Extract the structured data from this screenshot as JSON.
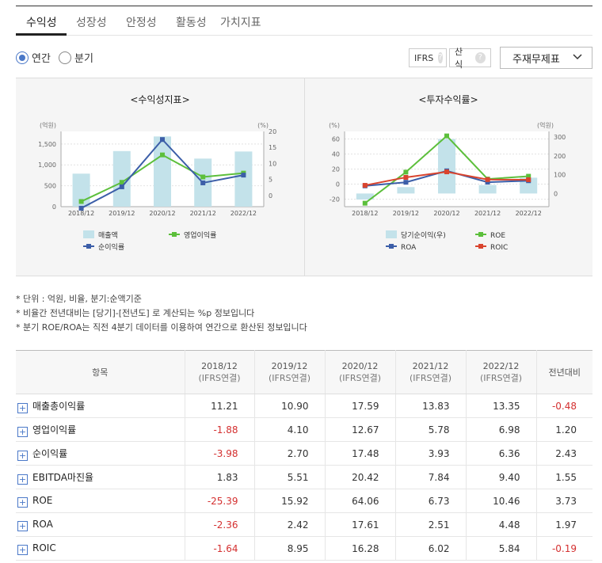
{
  "tabs": [
    {
      "label": "수익성"
    },
    {
      "label": "성장성"
    },
    {
      "label": "안정성"
    },
    {
      "label": "활동성"
    },
    {
      "label": "가치지표"
    }
  ],
  "toolbar": {
    "radio_annual": "연간",
    "radio_quarter": "분기",
    "ifrs_label": "IFRS",
    "calc_label": "산식",
    "qmark": "?",
    "select_value": "주재무제표"
  },
  "colors": {
    "bar": "#c3e2ea",
    "green": "#5cbf3b",
    "blue": "#3c5ea8",
    "red": "#d9442e",
    "negative": "#d43030"
  },
  "chart_data": [
    {
      "type": "bar",
      "title": "<수익성지표>",
      "left_unit": "(억원)",
      "right_unit": "(%)",
      "categories": [
        "2018/12",
        "2019/12",
        "2020/12",
        "2021/12",
        "2022/12"
      ],
      "left_ticks": [
        "0",
        "500",
        "1,000",
        "1,500"
      ],
      "right_ticks": [
        "0",
        "5",
        "10",
        "15",
        "20"
      ],
      "ylim_left": [
        0,
        1800
      ],
      "ylim_right": [
        -3.5,
        20
      ],
      "bar_series": {
        "name": "매출액",
        "values": [
          790,
          1330,
          1680,
          1150,
          1320
        ]
      },
      "line_series": [
        {
          "name": "영업이익률",
          "color": "green",
          "values": [
            -1.88,
            4.1,
            12.67,
            5.78,
            6.98
          ]
        },
        {
          "name": "순이익률",
          "color": "blue",
          "values": [
            -3.98,
            2.7,
            17.48,
            3.93,
            6.36
          ]
        }
      ]
    },
    {
      "type": "bar",
      "title": "<투자수익률>",
      "left_unit": "(%)",
      "right_unit": "(억원)",
      "categories": [
        "2018/12",
        "2019/12",
        "2020/12",
        "2021/12",
        "2022/12"
      ],
      "left_ticks": [
        "-20",
        "0",
        "20",
        "40",
        "60"
      ],
      "right_ticks": [
        "0",
        "100",
        "200",
        "300"
      ],
      "ylim_left": [
        -30,
        70
      ],
      "ylim_right": [
        -70,
        330
      ],
      "bar_series": {
        "name": "당기순이익(우)",
        "values": [
          -32,
          34,
          290,
          45,
          84
        ]
      },
      "line_series": [
        {
          "name": "ROE",
          "color": "green",
          "values": [
            -25.39,
            15.92,
            64.06,
            6.73,
            10.46
          ]
        },
        {
          "name": "ROA",
          "color": "blue",
          "values": [
            -2.36,
            2.42,
            17.61,
            2.51,
            4.48
          ]
        },
        {
          "name": "ROIC",
          "color": "red",
          "values": [
            -1.64,
            8.95,
            16.28,
            6.02,
            5.84
          ]
        }
      ]
    }
  ],
  "notes": [
    "* 단위 : 억원, 비율, 분기:순액기준",
    "* 비율간 전년대비는 [당기]-[전년도] 로 계산되는 %p 정보입니다",
    "* 분기 ROE/ROA는 직전 4분기 데이터를 이용하여 연간으로 환산된 정보입니다"
  ],
  "table": {
    "header_item": "항목",
    "columns": [
      {
        "year": "2018/12",
        "sub": "(IFRS연결)"
      },
      {
        "year": "2019/12",
        "sub": "(IFRS연결)"
      },
      {
        "year": "2020/12",
        "sub": "(IFRS연결)"
      },
      {
        "year": "2021/12",
        "sub": "(IFRS연결)"
      },
      {
        "year": "2022/12",
        "sub": "(IFRS연결)"
      }
    ],
    "header_yoy": "전년대비",
    "rows": [
      {
        "name": "매출총이익률",
        "values": [
          "11.21",
          "10.90",
          "17.59",
          "13.83",
          "13.35"
        ],
        "yoy": "-0.48"
      },
      {
        "name": "영업이익률",
        "values": [
          "-1.88",
          "4.10",
          "12.67",
          "5.78",
          "6.98"
        ],
        "yoy": "1.20"
      },
      {
        "name": "순이익률",
        "values": [
          "-3.98",
          "2.70",
          "17.48",
          "3.93",
          "6.36"
        ],
        "yoy": "2.43"
      },
      {
        "name": "EBITDA마진율",
        "values": [
          "1.83",
          "5.51",
          "20.42",
          "7.84",
          "9.40"
        ],
        "yoy": "1.55"
      },
      {
        "name": "ROE",
        "values": [
          "-25.39",
          "15.92",
          "64.06",
          "6.73",
          "10.46"
        ],
        "yoy": "3.73"
      },
      {
        "name": "ROA",
        "values": [
          "-2.36",
          "2.42",
          "17.61",
          "2.51",
          "4.48"
        ],
        "yoy": "1.97"
      },
      {
        "name": "ROIC",
        "values": [
          "-1.64",
          "8.95",
          "16.28",
          "6.02",
          "5.84"
        ],
        "yoy": "-0.19"
      }
    ],
    "expand_symbol": "+"
  }
}
